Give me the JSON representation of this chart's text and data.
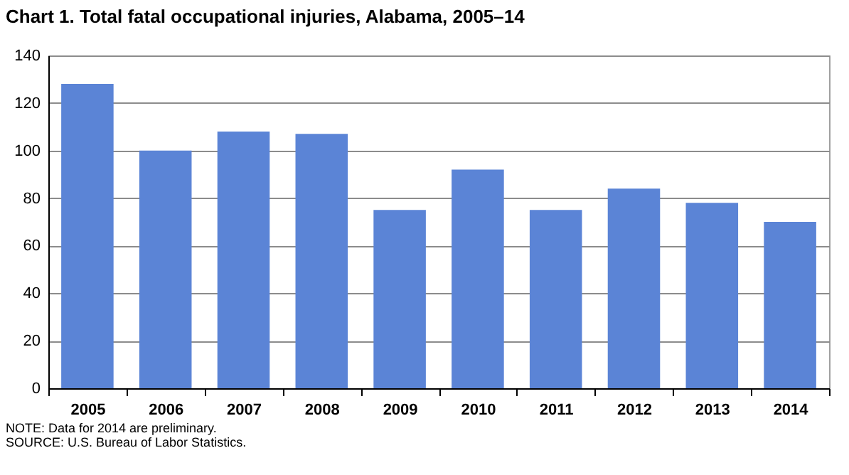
{
  "chart_data": {
    "type": "bar",
    "title": "Chart 1. Total fatal occupational injuries, Alabama, 2005–14",
    "categories": [
      "2005",
      "2006",
      "2007",
      "2008",
      "2009",
      "2010",
      "2011",
      "2012",
      "2013",
      "2014"
    ],
    "values": [
      128,
      100,
      108,
      107,
      75,
      92,
      75,
      84,
      78,
      70
    ],
    "color": "#5b84d6",
    "ylim": [
      0,
      140
    ],
    "yticks": [
      0,
      20,
      40,
      60,
      80,
      100,
      120,
      140
    ],
    "grid": "y",
    "annotations": [
      "NOTE: Data for 2014 are preliminary.",
      "SOURCE: U.S. Bureau of Labor Statistics."
    ]
  }
}
